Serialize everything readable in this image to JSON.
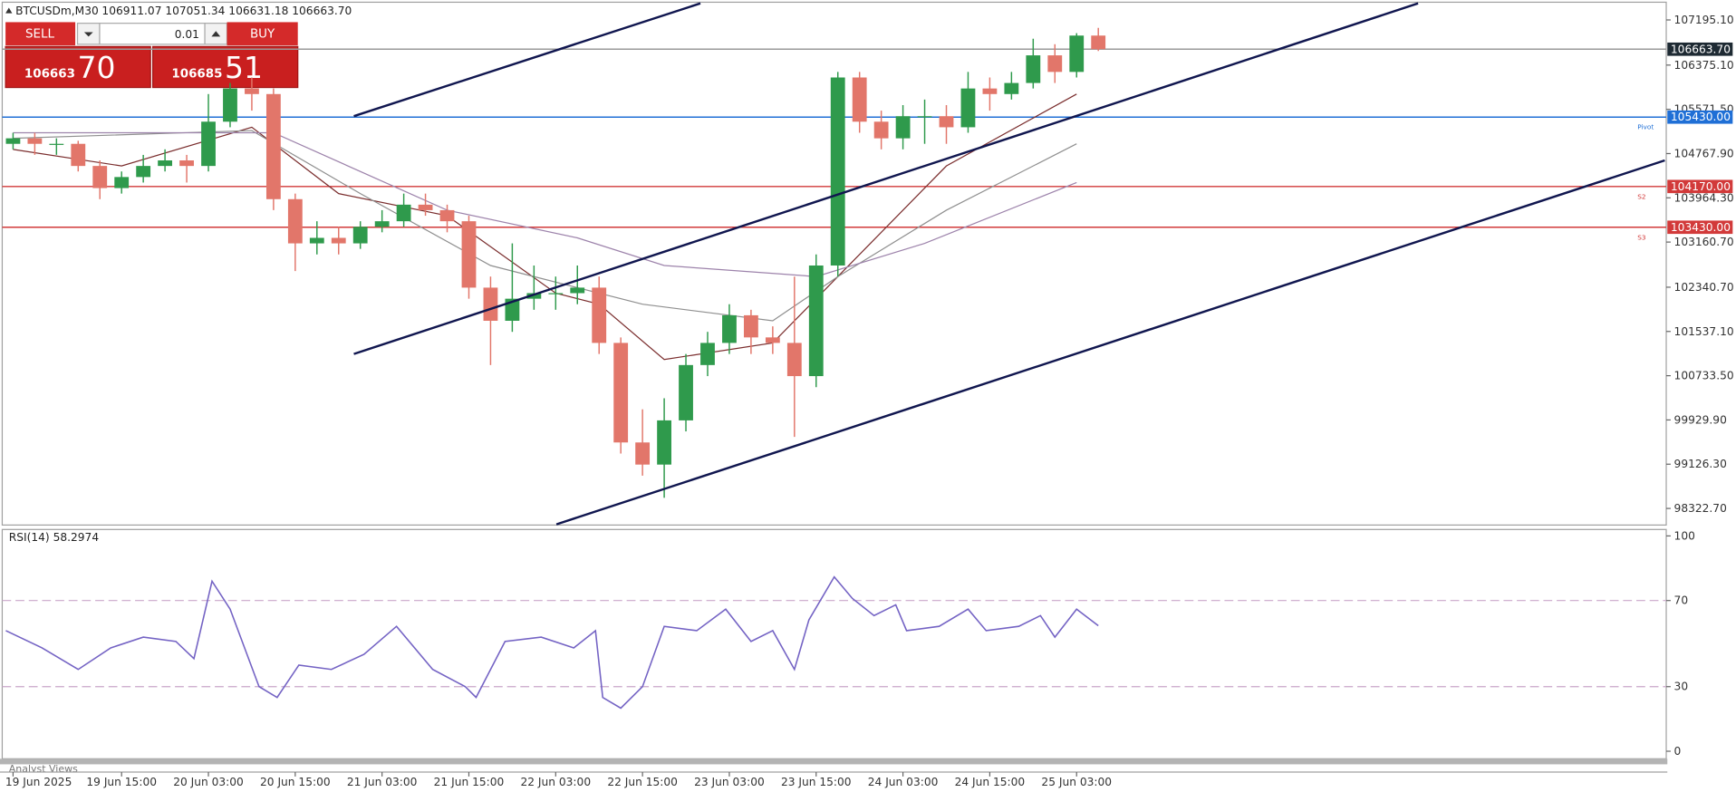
{
  "header": {
    "symbol": "BTCUSDm,M30",
    "ohlc": "106911.07 107051.34 106631.18 106663.70"
  },
  "trade_panel": {
    "sell": "SELL",
    "buy": "BUY",
    "volume": "0.01",
    "bid_main": "106663",
    "bid_big": "70",
    "ask_main": "106685",
    "ask_big": "51"
  },
  "footer": {
    "tab": "Analyst Views"
  },
  "chart_data": [
    {
      "type": "candlestick",
      "up_color": "#2f9a4c",
      "down_color": "#e2766a",
      "grid": false,
      "x": [
        0,
        3,
        6,
        9,
        12,
        15,
        18,
        21,
        24,
        27,
        30,
        33,
        36,
        39,
        42,
        45,
        48,
        51,
        54,
        57,
        60,
        63,
        66,
        69,
        72,
        75,
        78,
        81,
        84,
        87,
        90,
        93,
        96,
        99,
        102,
        105,
        108,
        111,
        114,
        117,
        120,
        123,
        126,
        129,
        132,
        135,
        138,
        141,
        144,
        147,
        150
      ],
      "open": [
        104945,
        105045,
        104945,
        104945,
        104543,
        104141,
        104342,
        104543,
        104644,
        104543,
        105347,
        105950,
        105849,
        103940,
        103137,
        103237,
        103137,
        103438,
        103539,
        103840,
        103740,
        103539,
        102333,
        101731,
        102132,
        102233,
        102233,
        102333,
        101329,
        99521,
        99119,
        99922,
        100927,
        101329,
        101831,
        101429,
        101329,
        100726,
        102735,
        106150,
        105347,
        105045,
        105447,
        105447,
        105246,
        105950,
        105849,
        106050,
        106552,
        106251,
        106911.07
      ],
      "high": [
        105145,
        105146,
        105045,
        105000,
        104644,
        104443,
        104744,
        104845,
        104744,
        105849,
        106050,
        106150,
        105950,
        104041,
        103539,
        103438,
        103539,
        103740,
        104041,
        104041,
        103840,
        103639,
        102534,
        103137,
        102735,
        102534,
        102735,
        102534,
        101429,
        100123,
        100324,
        101128,
        101530,
        102032,
        101931,
        101630,
        102534,
        102936,
        106251,
        106251,
        105548,
        105648,
        105749,
        105648,
        106251,
        106150,
        106251,
        106854,
        106754,
        106955,
        107051.34
      ],
      "low": [
        104845,
        104745,
        104745,
        104443,
        103940,
        104041,
        104242,
        104443,
        104242,
        104443,
        105246,
        105548,
        103740,
        102634,
        102936,
        102936,
        103037,
        103338,
        103438,
        103639,
        103338,
        102132,
        100927,
        101530,
        101931,
        101931,
        102032,
        101128,
        99320,
        98918,
        98516,
        99722,
        100726,
        101128,
        101128,
        101128,
        99622,
        100525,
        102534,
        105146,
        104845,
        104845,
        104945,
        104945,
        105146,
        105548,
        105749,
        105950,
        106050,
        106150,
        106631.18
      ],
      "close": [
        105045,
        104945,
        104945,
        104543,
        104141,
        104342,
        104543,
        104644,
        104543,
        105347,
        105950,
        105849,
        103940,
        103137,
        103237,
        103137,
        103438,
        103539,
        103840,
        103740,
        103539,
        102333,
        101731,
        102132,
        102233,
        102233,
        102333,
        101329,
        99521,
        99119,
        99922,
        100927,
        101329,
        101831,
        101429,
        101329,
        100726,
        102735,
        106150,
        105347,
        105045,
        105447,
        105447,
        105246,
        105950,
        105849,
        106050,
        106552,
        106251,
        106911.07,
        106663.7
      ],
      "xlim": [
        -1.5,
        228.5
      ],
      "xticks": [
        {
          "value": 0,
          "label": "19 Jun 2025"
        },
        {
          "value": 15,
          "label": "19 Jun 15:00"
        },
        {
          "value": 27,
          "label": "20 Jun 03:00"
        },
        {
          "value": 39,
          "label": "20 Jun 15:00"
        },
        {
          "value": 51,
          "label": "21 Jun 03:00"
        },
        {
          "value": 63,
          "label": "21 Jun 15:00"
        },
        {
          "value": 75,
          "label": "22 Jun 03:00"
        },
        {
          "value": 87,
          "label": "22 Jun 15:00"
        },
        {
          "value": 99,
          "label": "23 Jun 03:00"
        },
        {
          "value": 111,
          "label": "23 Jun 15:00"
        },
        {
          "value": 123,
          "label": "24 Jun 03:00"
        },
        {
          "value": 135,
          "label": "24 Jun 15:00"
        },
        {
          "value": 147,
          "label": "25 Jun 03:00"
        }
      ],
      "ylim": [
        98021,
        107517
      ],
      "yticks": [
        {
          "value": 107195.1,
          "label": "107195.10"
        },
        {
          "value": 106375.1,
          "label": "106375.10"
        },
        {
          "value": 105571.5,
          "label": "105571.50"
        },
        {
          "value": 104767.9,
          "label": "104767.90"
        },
        {
          "value": 103964.3,
          "label": "103964.30"
        },
        {
          "value": 103160.7,
          "label": "103160.70"
        },
        {
          "value": 102340.7,
          "label": "102340.70"
        },
        {
          "value": 101537.1,
          "label": "101537.10"
        },
        {
          "value": 100733.5,
          "label": "100733.50"
        },
        {
          "value": 99929.9,
          "label": "99929.90"
        },
        {
          "value": 99126.3,
          "label": "99126.30"
        },
        {
          "value": 98322.7,
          "label": "98322.70"
        }
      ],
      "hlines": [
        {
          "value": 106663.7,
          "label": "106663.70",
          "color": "#9a9a9a",
          "box": "#1e2a33"
        },
        {
          "value": 105430,
          "label": "105430.00",
          "color": "#1f6fd6",
          "box": "#1f6fd6",
          "tag": "Pivot"
        },
        {
          "value": 104170,
          "label": "104170.00",
          "color": "#d23a3a",
          "box": "#d23a3a",
          "tag": "S2"
        },
        {
          "value": 103430,
          "label": "103430.00",
          "color": "#d23a3a",
          "box": "#d23a3a",
          "tag": "S3"
        }
      ],
      "moving_averages": [
        {
          "color": "#7a2d2d",
          "x": [
            0,
            15,
            33,
            45,
            60,
            75,
            81,
            90,
            105,
            114,
            129,
            147
          ],
          "values": [
            104844,
            104543,
            105246,
            104041,
            103639,
            102233,
            102032,
            101027,
            101329,
            102534,
            104543,
            105849
          ]
        },
        {
          "color": "#8f8f8f",
          "x": [
            0,
            33,
            48,
            66,
            87,
            105,
            114,
            129,
            147
          ],
          "values": [
            105045,
            105186,
            104041,
            102735,
            102032,
            101731,
            102534,
            103740,
            104945
          ]
        },
        {
          "color": "#9d83ab",
          "x": [
            0,
            36,
            60,
            78,
            90,
            111,
            126,
            147
          ],
          "values": [
            105146,
            105146,
            103740,
            103237,
            102735,
            102534,
            103137,
            104242
          ]
        }
      ],
      "trendlines": [
        {
          "color": "#10164f",
          "x": [
            47.1,
            95.0
          ],
          "values": [
            105447,
            107496
          ]
        },
        {
          "color": "#10164f",
          "x": [
            47.1,
            194.2
          ],
          "values": [
            101128,
            107496
          ]
        },
        {
          "color": "#10164f",
          "x": [
            75.1,
            228.3
          ],
          "values": [
            98034,
            104644
          ]
        }
      ]
    },
    {
      "type": "line",
      "title": "RSI(14) 58.2974",
      "xlim": [
        -1.5,
        228.5
      ],
      "ylim": [
        -3.5,
        103
      ],
      "yticks": [
        0,
        30,
        70,
        100
      ],
      "levels": [
        30,
        70
      ],
      "level_color": "#c9a6c9",
      "x": [
        -1,
        4,
        9,
        13.5,
        18,
        22.5,
        25,
        27.5,
        30,
        34,
        36.5,
        39.5,
        44,
        48.5,
        53,
        58,
        62.5,
        64,
        68,
        73,
        77.5,
        80.5,
        81.5,
        84,
        87,
        90,
        94.5,
        98.5,
        102,
        105,
        108,
        110,
        113.5,
        116,
        119,
        122,
        123.5,
        128,
        132,
        134.5,
        139,
        142,
        144,
        147,
        150
      ],
      "series": [
        {
          "color": "#7463c4",
          "values": [
            56,
            48,
            38,
            48,
            53,
            51,
            43,
            79,
            66,
            30,
            25,
            40,
            38,
            45,
            58,
            38,
            30,
            25,
            51,
            53,
            48,
            56,
            25,
            20,
            30,
            58,
            56,
            66,
            51,
            56,
            38,
            61,
            81,
            71,
            63,
            68,
            56,
            58,
            66,
            56,
            58,
            63,
            53,
            66,
            58.2974
          ]
        }
      ]
    }
  ]
}
